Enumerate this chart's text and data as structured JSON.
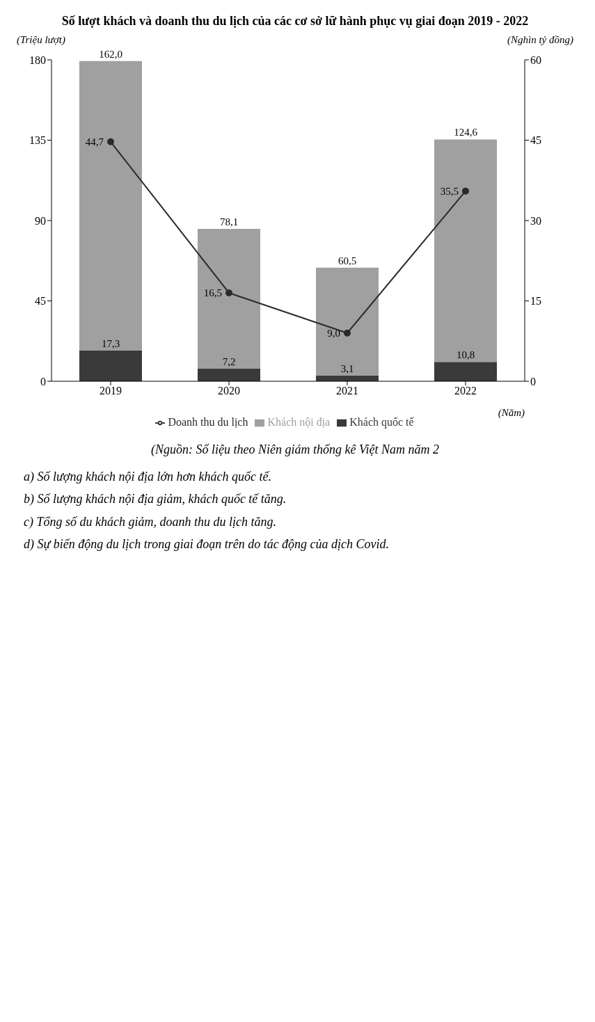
{
  "chart_data": {
    "type": "bar",
    "title": "Số lượt khách và doanh thu du lịch của các cơ sở lữ hành phục vụ giai đoạn 2019 - 2022",
    "categories": [
      "2019",
      "2020",
      "2021",
      "2022"
    ],
    "series": [
      {
        "name": "Khách quốc tế",
        "color": "#3a3a3a",
        "values": [
          17.3,
          7.2,
          3.1,
          10.8
        ],
        "value_labels": [
          "17,3",
          "7,2",
          "3,1",
          "10,8"
        ]
      },
      {
        "name": "Khách nội địa",
        "color": "#a0a0a0",
        "values": [
          162.0,
          78.1,
          60.5,
          124.6
        ],
        "value_labels": [
          "162,0",
          "78,1",
          "60,5",
          "124,6"
        ]
      },
      {
        "name": "Doanh thu du lịch",
        "type": "line",
        "axis": "y2",
        "color": "#2a2a2a",
        "values": [
          44.7,
          16.5,
          9.0,
          35.5
        ],
        "value_labels": [
          "44,7",
          "16,5",
          "9,0",
          "35,5"
        ]
      }
    ],
    "stacked": true,
    "marker": "circle",
    "legend": "bottom",
    "xlabel": "(Năm)",
    "ylabel": "(Triệu lượt)",
    "y2label": "(Nghìn tỷ đồng)",
    "ylim": [
      0,
      180
    ],
    "yticks": [
      0,
      45,
      90,
      135,
      180
    ],
    "y2lim": [
      0,
      60
    ],
    "y2ticks": [
      0,
      15,
      30,
      45,
      60
    ],
    "annotations": [
      "(Nguồn: Số liệu theo Niên giám thống kê Việt Nam năm 2",
      "a) Số lượng khách nội địa lớn hơn khách quốc tế.",
      "b) Số lượng khách nội địa giảm, khách quốc tế tăng.",
      "c) Tổng số du khách giảm, doanh thu du lịch tăng.",
      "d) Sự biến động du lịch trong giai đoạn trên do tác động của dịch Covid."
    ]
  }
}
